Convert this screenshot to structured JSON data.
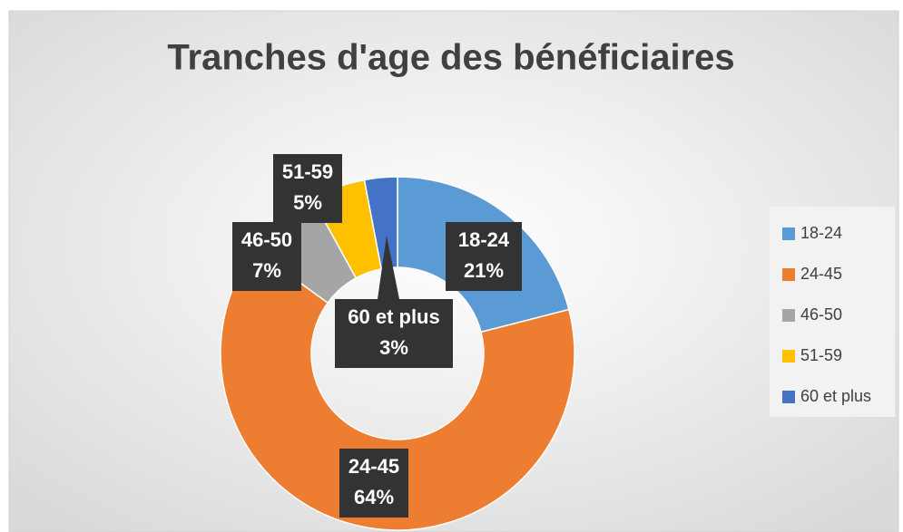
{
  "chart_data": {
    "type": "donut",
    "title": "Tranches d'age des bénéficiaires",
    "categories": [
      "18-24",
      "24-45",
      "46-50",
      "51-59",
      "60 et plus"
    ],
    "values": [
      21,
      64,
      7,
      5,
      3
    ],
    "value_labels": [
      "21%",
      "64%",
      "7%",
      "5%",
      "3%"
    ],
    "colors": [
      "#5b9bd5",
      "#ed7d31",
      "#a5a5a5",
      "#ffc000",
      "#4472c4"
    ],
    "legend": "right"
  }
}
